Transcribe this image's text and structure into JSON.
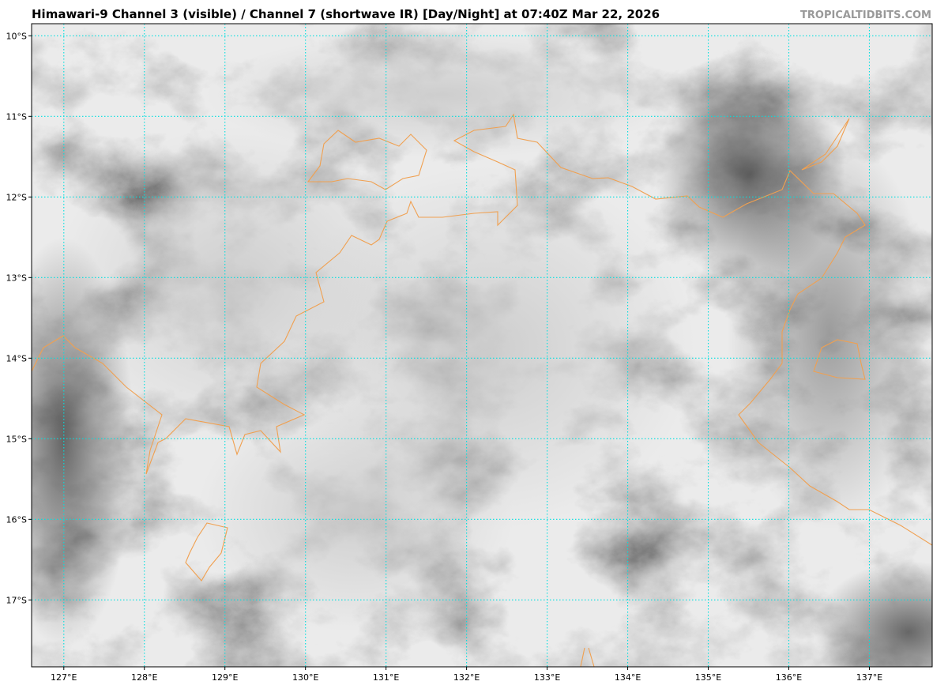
{
  "map": {
    "title": "Himawari-9 Channel 3 (visible) / Channel 7 (shortwave IR) [Day/Night] at 07:40Z Mar 22, 2026",
    "credit": "TROPICALTIDBITS.COM",
    "lon_range": [
      126.6,
      137.78
    ],
    "lat_range": [
      -9.85,
      -17.83
    ],
    "lon_ticks": [
      {
        "value": 127,
        "label": "127°E"
      },
      {
        "value": 128,
        "label": "128°E"
      },
      {
        "value": 129,
        "label": "129°E"
      },
      {
        "value": 130,
        "label": "130°E"
      },
      {
        "value": 131,
        "label": "131°E"
      },
      {
        "value": 132,
        "label": "132°E"
      },
      {
        "value": 133,
        "label": "133°E"
      },
      {
        "value": 134,
        "label": "134°E"
      },
      {
        "value": 135,
        "label": "135°E"
      },
      {
        "value": 136,
        "label": "136°E"
      },
      {
        "value": 137,
        "label": "137°E"
      }
    ],
    "lat_ticks": [
      {
        "value": -10,
        "label": "10°S"
      },
      {
        "value": -11,
        "label": "11°S"
      },
      {
        "value": -12,
        "label": "12°S"
      },
      {
        "value": -13,
        "label": "13°S"
      },
      {
        "value": -14,
        "label": "14°S"
      },
      {
        "value": -15,
        "label": "15°S"
      },
      {
        "value": -16,
        "label": "16°S"
      },
      {
        "value": -17,
        "label": "17°S"
      }
    ],
    "grid_color": "#00e0e0",
    "coast_color": "#f0a050"
  }
}
